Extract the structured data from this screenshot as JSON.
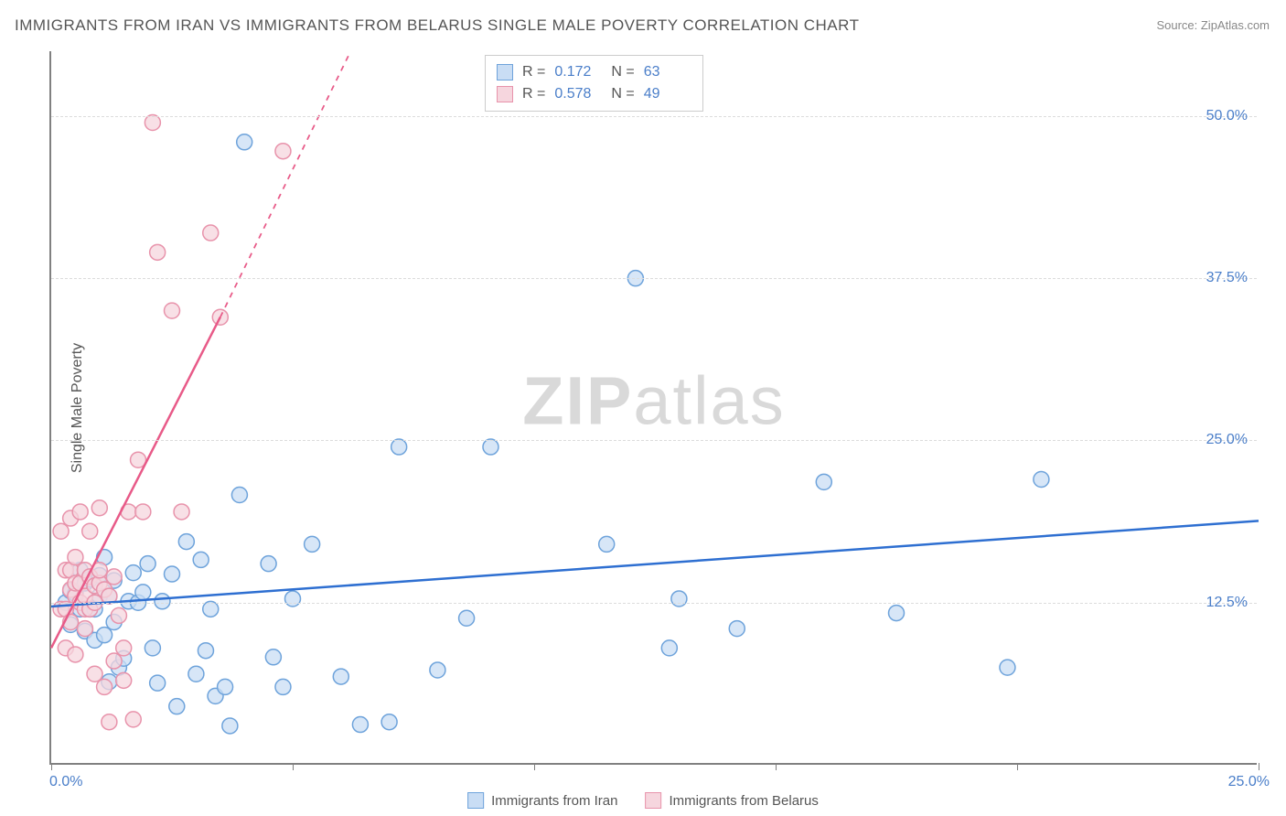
{
  "chart": {
    "title": "IMMIGRANTS FROM IRAN VS IMMIGRANTS FROM BELARUS SINGLE MALE POVERTY CORRELATION CHART",
    "source": "Source: ZipAtlas.com",
    "watermark_bold": "ZIP",
    "watermark_rest": "atlas",
    "y_axis_label": "Single Male Poverty",
    "type": "scatter",
    "background_color": "#ffffff",
    "grid_color": "#dcdcdc",
    "axis_color": "#808080",
    "xlim": [
      0,
      25
    ],
    "ylim": [
      0,
      55
    ],
    "x_ticks": [
      0,
      5,
      10,
      15,
      20,
      25
    ],
    "x_tick_labels": {
      "0": "0.0%",
      "25": "25.0%"
    },
    "y_gridlines": [
      12.5,
      25.0,
      37.5,
      50.0
    ],
    "y_tick_labels": [
      "12.5%",
      "25.0%",
      "37.5%",
      "50.0%"
    ],
    "marker_radius": 8.5,
    "marker_stroke_width": 1.5,
    "regression_line_width": 2.5,
    "series": [
      {
        "name": "Immigrants from Iran",
        "color_fill": "#c9ddf4",
        "color_stroke": "#6ea3db",
        "line_color": "#2e6fd1",
        "R": "0.172",
        "N": "63",
        "regression": {
          "x1": 0,
          "y1": 12.2,
          "x2": 25,
          "y2": 18.8
        },
        "points": [
          [
            0.3,
            12.5
          ],
          [
            0.4,
            13.4
          ],
          [
            0.4,
            10.8
          ],
          [
            0.5,
            13.2
          ],
          [
            0.6,
            12.0
          ],
          [
            0.6,
            15.0
          ],
          [
            0.7,
            14.0
          ],
          [
            0.7,
            10.3
          ],
          [
            0.8,
            12.0
          ],
          [
            0.8,
            14.3
          ],
          [
            0.9,
            12.0
          ],
          [
            0.9,
            9.6
          ],
          [
            1.0,
            13.0
          ],
          [
            1.0,
            14.6
          ],
          [
            1.1,
            10.0
          ],
          [
            1.1,
            16.0
          ],
          [
            1.2,
            6.4
          ],
          [
            1.2,
            13.0
          ],
          [
            1.3,
            14.2
          ],
          [
            1.3,
            11.0
          ],
          [
            1.4,
            7.5
          ],
          [
            1.5,
            8.2
          ],
          [
            1.6,
            12.6
          ],
          [
            1.7,
            14.8
          ],
          [
            1.8,
            12.5
          ],
          [
            1.9,
            13.3
          ],
          [
            2.0,
            15.5
          ],
          [
            2.1,
            9.0
          ],
          [
            2.2,
            6.3
          ],
          [
            2.3,
            12.6
          ],
          [
            2.5,
            14.7
          ],
          [
            2.6,
            4.5
          ],
          [
            2.8,
            17.2
          ],
          [
            3.0,
            7.0
          ],
          [
            3.1,
            15.8
          ],
          [
            3.2,
            8.8
          ],
          [
            3.3,
            12.0
          ],
          [
            3.4,
            5.3
          ],
          [
            3.6,
            6.0
          ],
          [
            3.7,
            3.0
          ],
          [
            3.9,
            20.8
          ],
          [
            4.0,
            48.0
          ],
          [
            4.5,
            15.5
          ],
          [
            4.6,
            8.3
          ],
          [
            4.8,
            6.0
          ],
          [
            5.0,
            12.8
          ],
          [
            5.4,
            17.0
          ],
          [
            6.0,
            6.8
          ],
          [
            6.4,
            3.1
          ],
          [
            7.0,
            3.3
          ],
          [
            7.2,
            24.5
          ],
          [
            8.0,
            7.3
          ],
          [
            8.6,
            11.3
          ],
          [
            9.1,
            24.5
          ],
          [
            11.5,
            17.0
          ],
          [
            12.1,
            37.5
          ],
          [
            12.8,
            9.0
          ],
          [
            13.0,
            12.8
          ],
          [
            14.2,
            10.5
          ],
          [
            16.0,
            21.8
          ],
          [
            17.5,
            11.7
          ],
          [
            19.8,
            7.5
          ],
          [
            20.5,
            22.0
          ]
        ]
      },
      {
        "name": "Immigrants from Belarus",
        "color_fill": "#f6d6de",
        "color_stroke": "#e893ab",
        "line_color": "#e85a88",
        "R": "0.578",
        "N": "49",
        "regression": {
          "x1": 0,
          "y1": 9.0,
          "x2": 3.5,
          "y2": 34.5
        },
        "regression_dashed": {
          "x1": 3.5,
          "y1": 34.5,
          "x2": 6.2,
          "y2": 55.0
        },
        "points": [
          [
            0.2,
            12.0
          ],
          [
            0.2,
            18.0
          ],
          [
            0.3,
            12.0
          ],
          [
            0.3,
            15.0
          ],
          [
            0.3,
            9.0
          ],
          [
            0.4,
            13.5
          ],
          [
            0.4,
            15.0
          ],
          [
            0.4,
            19.0
          ],
          [
            0.4,
            11.0
          ],
          [
            0.5,
            13.0
          ],
          [
            0.5,
            16.0
          ],
          [
            0.5,
            14.0
          ],
          [
            0.5,
            8.5
          ],
          [
            0.6,
            12.5
          ],
          [
            0.6,
            14.0
          ],
          [
            0.6,
            19.5
          ],
          [
            0.7,
            12.0
          ],
          [
            0.7,
            13.0
          ],
          [
            0.7,
            15.0
          ],
          [
            0.7,
            10.5
          ],
          [
            0.8,
            14.5
          ],
          [
            0.8,
            12.0
          ],
          [
            0.8,
            18.0
          ],
          [
            0.9,
            12.5
          ],
          [
            0.9,
            13.8
          ],
          [
            0.9,
            7.0
          ],
          [
            1.0,
            14.0
          ],
          [
            1.0,
            19.8
          ],
          [
            1.0,
            15.0
          ],
          [
            1.1,
            13.5
          ],
          [
            1.1,
            6.0
          ],
          [
            1.2,
            13.0
          ],
          [
            1.2,
            3.3
          ],
          [
            1.3,
            8.0
          ],
          [
            1.3,
            14.5
          ],
          [
            1.4,
            11.5
          ],
          [
            1.5,
            9.0
          ],
          [
            1.5,
            6.5
          ],
          [
            1.6,
            19.5
          ],
          [
            1.7,
            3.5
          ],
          [
            1.8,
            23.5
          ],
          [
            1.9,
            19.5
          ],
          [
            2.1,
            49.5
          ],
          [
            2.2,
            39.5
          ],
          [
            2.5,
            35.0
          ],
          [
            2.7,
            19.5
          ],
          [
            3.3,
            41.0
          ],
          [
            3.5,
            34.5
          ],
          [
            4.8,
            47.3
          ]
        ]
      }
    ]
  },
  "legend": {
    "r_label": "R =",
    "n_label": "N ="
  }
}
